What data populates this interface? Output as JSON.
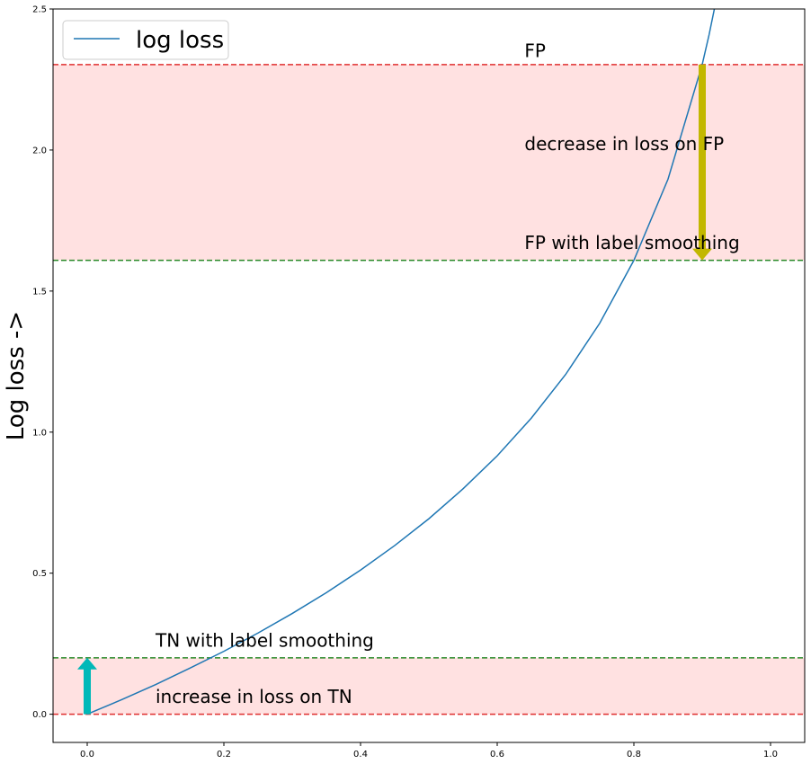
{
  "chart_data": {
    "type": "line",
    "title": "",
    "xlabel": "",
    "ylabel": "Log loss ->",
    "xlim": [
      -0.05,
      1.05
    ],
    "ylim": [
      -0.1,
      2.5
    ],
    "xticks": [
      "0.0",
      "0.2",
      "0.4",
      "0.6",
      "0.8",
      "1.0"
    ],
    "yticks": [
      "0.0",
      "0.5",
      "1.0",
      "1.5",
      "2.0",
      "2.5"
    ],
    "grid": false,
    "legend": {
      "placement": "top-left",
      "entries": [
        "log loss"
      ]
    },
    "series": [
      {
        "name": "log loss",
        "color": "#1f77b4",
        "x": [
          0.0,
          0.05,
          0.1,
          0.15,
          0.2,
          0.25,
          0.3,
          0.35,
          0.4,
          0.45,
          0.5,
          0.55,
          0.6,
          0.65,
          0.7,
          0.75,
          0.8,
          0.85,
          0.9,
          0.91,
          0.92
        ],
        "y": [
          0.0,
          0.051,
          0.105,
          0.163,
          0.223,
          0.288,
          0.357,
          0.431,
          0.511,
          0.598,
          0.693,
          0.799,
          0.916,
          1.05,
          1.204,
          1.386,
          1.609,
          1.897,
          2.303,
          2.408,
          2.526
        ]
      }
    ],
    "bands": [
      {
        "y0": 1.609,
        "y1": 2.303,
        "color": "#ffe1e1"
      },
      {
        "y0": 0.0,
        "y1": 0.2,
        "color": "#ffe1e1"
      }
    ],
    "hlines": [
      {
        "y": 2.303,
        "color": "#e03030",
        "style": "dashed"
      },
      {
        "y": 1.609,
        "color": "#2a8a2a",
        "style": "dashed"
      },
      {
        "y": 0.2,
        "color": "#2a8a2a",
        "style": "dashed"
      },
      {
        "y": 0.0,
        "color": "#e03030",
        "style": "dashed"
      }
    ],
    "arrows": [
      {
        "x": 0.9,
        "y_from": 2.303,
        "y_to": 1.609,
        "color": "#c2b700"
      },
      {
        "x": 0.0,
        "y_from": 0.0,
        "y_to": 0.2,
        "color": "#00b8b8"
      }
    ],
    "annotations": [
      {
        "text": "FP",
        "x": 0.64,
        "y": 2.33
      },
      {
        "text": "decrease in loss on FP",
        "x": 0.64,
        "y": 2.0
      },
      {
        "text": "FP with label smoothing",
        "x": 0.64,
        "y": 1.65
      },
      {
        "text": "TN with label smoothing",
        "x": 0.1,
        "y": 0.24
      },
      {
        "text": "increase in loss on TN",
        "x": 0.1,
        "y": 0.04
      }
    ]
  }
}
